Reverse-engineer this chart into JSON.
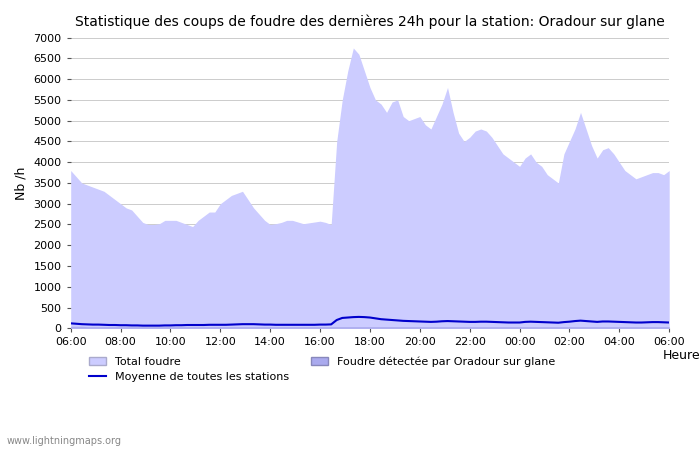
{
  "title": "Statistique des coups de foudre des dernières 24h pour la station: Oradour sur glane",
  "xlabel": "Heure",
  "ylabel": "Nb /h",
  "ylim": [
    0,
    7000
  ],
  "yticks": [
    0,
    500,
    1000,
    1500,
    2000,
    2500,
    3000,
    3500,
    4000,
    4500,
    5000,
    5500,
    6000,
    6500,
    7000
  ],
  "xticks": [
    "06:00",
    "08:00",
    "10:00",
    "12:00",
    "14:00",
    "16:00",
    "18:00",
    "20:00",
    "22:00",
    "00:00",
    "02:00",
    "04:00",
    "06:00"
  ],
  "watermark": "www.lightningmaps.org",
  "fill_color_total": "#ccccff",
  "fill_color_local": "#aaaaee",
  "line_color": "#0000cc",
  "background_color": "#ffffff",
  "grid_color": "#cccccc",
  "total_foudre": [
    3800,
    3650,
    3500,
    3450,
    3400,
    3350,
    3300,
    3200,
    3100,
    3000,
    2900,
    2850,
    2700,
    2550,
    2500,
    2500,
    2520,
    2600,
    2600,
    2600,
    2550,
    2500,
    2450,
    2600,
    2700,
    2800,
    2800,
    3000,
    3100,
    3200,
    3250,
    3300,
    3100,
    2900,
    2750,
    2600,
    2500,
    2520,
    2550,
    2600,
    2600,
    2560,
    2520,
    2540,
    2560,
    2580,
    2550,
    2500,
    4500,
    5500,
    6200,
    6750,
    6600,
    6200,
    5800,
    5500,
    5400,
    5200,
    5450,
    5500,
    5100,
    5000,
    5050,
    5100,
    4900,
    4800,
    5100,
    5400,
    5800,
    5200,
    4700,
    4500,
    4600,
    4750,
    4800,
    4750,
    4600,
    4400,
    4200,
    4100,
    4000,
    3900,
    4100,
    4200,
    4000,
    3900,
    3700,
    3600,
    3500,
    4200,
    4500,
    4800,
    5200,
    4800,
    4400,
    4100,
    4300,
    4350,
    4200,
    4000,
    3800,
    3700,
    3600,
    3650,
    3700,
    3750,
    3750,
    3700,
    3800
  ],
  "local_foudre": [
    50,
    50,
    50,
    40,
    40,
    40,
    40,
    40,
    40,
    40,
    40,
    40,
    40,
    40,
    40,
    40,
    40,
    40,
    40,
    40,
    40,
    40,
    40,
    40,
    40,
    40,
    40,
    40,
    40,
    40,
    40,
    40,
    40,
    40,
    40,
    40,
    40,
    40,
    40,
    40,
    40,
    40,
    40,
    40,
    40,
    40,
    40,
    40,
    40,
    40,
    40,
    40,
    40,
    40,
    40,
    40,
    40,
    40,
    40,
    40,
    40,
    40,
    40,
    40,
    40,
    40,
    40,
    40,
    40,
    40,
    40,
    40,
    40,
    40,
    40,
    40,
    40,
    40,
    40,
    40,
    40,
    40,
    40,
    40,
    40,
    40,
    40,
    40,
    40,
    40,
    40,
    40,
    40,
    40,
    40,
    40,
    40,
    40,
    40,
    40,
    40,
    40,
    40,
    40,
    40,
    40,
    40,
    40,
    40
  ],
  "avg_line": [
    120,
    110,
    100,
    95,
    90,
    90,
    85,
    80,
    80,
    75,
    75,
    70,
    70,
    65,
    65,
    65,
    65,
    70,
    70,
    75,
    75,
    80,
    80,
    80,
    80,
    85,
    85,
    85,
    85,
    90,
    95,
    100,
    100,
    100,
    95,
    90,
    90,
    85,
    85,
    85,
    85,
    85,
    85,
    85,
    85,
    90,
    90,
    95,
    200,
    250,
    260,
    270,
    275,
    270,
    260,
    240,
    220,
    210,
    200,
    190,
    180,
    175,
    170,
    165,
    160,
    155,
    160,
    170,
    175,
    170,
    165,
    160,
    155,
    155,
    160,
    160,
    155,
    150,
    145,
    140,
    140,
    140,
    155,
    160,
    155,
    150,
    145,
    140,
    135,
    150,
    160,
    175,
    185,
    175,
    165,
    155,
    165,
    165,
    160,
    155,
    150,
    145,
    140,
    140,
    145,
    150,
    150,
    145,
    140
  ]
}
